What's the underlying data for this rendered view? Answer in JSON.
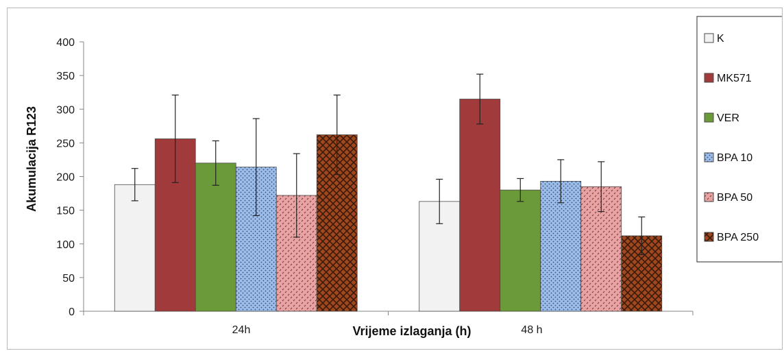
{
  "chart_data": {
    "type": "bar",
    "categories": [
      "24h",
      "48 h"
    ],
    "xlabel": "Vrijeme izlaganja (h)",
    "ylabel": "Akumulacija R123",
    "ylim": [
      0,
      400
    ],
    "yticks": [
      0,
      50,
      100,
      150,
      200,
      250,
      300,
      350,
      400
    ],
    "grid": false,
    "legend_position": "right",
    "series": [
      {
        "name": "K",
        "values": [
          188,
          163
        ],
        "errors": [
          24,
          33
        ],
        "color": "#f2f2f2",
        "pattern": "solid"
      },
      {
        "name": "MK571",
        "values": [
          256,
          315
        ],
        "errors": [
          65,
          37
        ],
        "color": "#a13b3b",
        "pattern": "solid"
      },
      {
        "name": "VER",
        "values": [
          220,
          180
        ],
        "errors": [
          33,
          17
        ],
        "color": "#6b9a38",
        "pattern": "solid"
      },
      {
        "name": "BPA 10",
        "values": [
          214,
          193
        ],
        "errors": [
          72,
          32
        ],
        "color": "#9dbde8",
        "pattern": "dots"
      },
      {
        "name": "BPA 50",
        "values": [
          172,
          185
        ],
        "errors": [
          62,
          37
        ],
        "color": "#e7a3a3",
        "pattern": "dashes"
      },
      {
        "name": "BPA 250",
        "values": [
          262,
          112
        ],
        "errors": [
          59,
          28
        ],
        "color": "#a0471e",
        "pattern": "crosshatch"
      }
    ]
  }
}
